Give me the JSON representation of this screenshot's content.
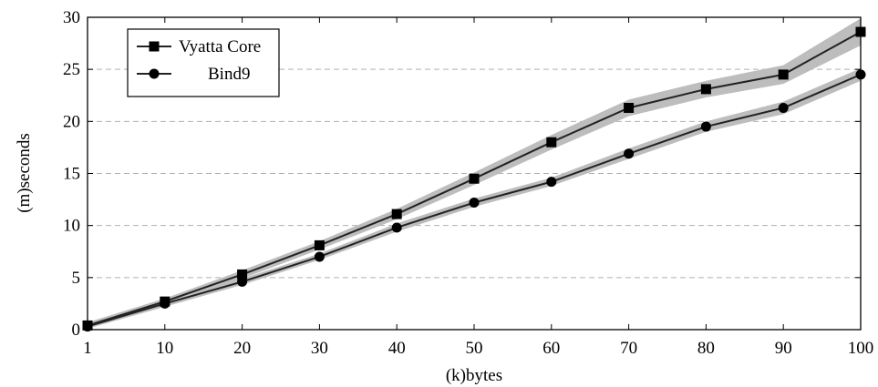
{
  "chart_data": {
    "type": "line",
    "xlabel": "(k)bytes",
    "ylabel": "(m)seconds",
    "x": [
      1,
      10,
      20,
      30,
      40,
      50,
      60,
      70,
      80,
      90,
      100
    ],
    "xticks": [
      1,
      10,
      20,
      30,
      40,
      50,
      60,
      70,
      80,
      90,
      100
    ],
    "xlim": [
      1,
      100
    ],
    "ylim": [
      0,
      30
    ],
    "yticks": [
      0,
      5,
      10,
      15,
      20,
      25,
      30
    ],
    "grid": "horizontal dashed",
    "legend_position": "top-left",
    "series": [
      {
        "name": "Vyatta Core",
        "marker": "square",
        "color": "#222222",
        "band_color": "#bdbdbd",
        "values": [
          0.4,
          2.7,
          5.3,
          8.1,
          11.1,
          14.5,
          18.0,
          21.3,
          23.1,
          24.5,
          28.6
        ],
        "band_half_width": [
          0.3,
          0.3,
          0.4,
          0.4,
          0.5,
          0.6,
          0.7,
          0.8,
          0.8,
          0.9,
          1.3
        ]
      },
      {
        "name": "Bind9",
        "marker": "circle",
        "color": "#222222",
        "band_color": "#bdbdbd",
        "values": [
          0.3,
          2.5,
          4.6,
          7.0,
          9.8,
          12.2,
          14.2,
          16.9,
          19.5,
          21.3,
          24.5
        ],
        "band_half_width": [
          0.2,
          0.3,
          0.3,
          0.3,
          0.4,
          0.4,
          0.4,
          0.5,
          0.5,
          0.6,
          0.6
        ]
      }
    ]
  }
}
